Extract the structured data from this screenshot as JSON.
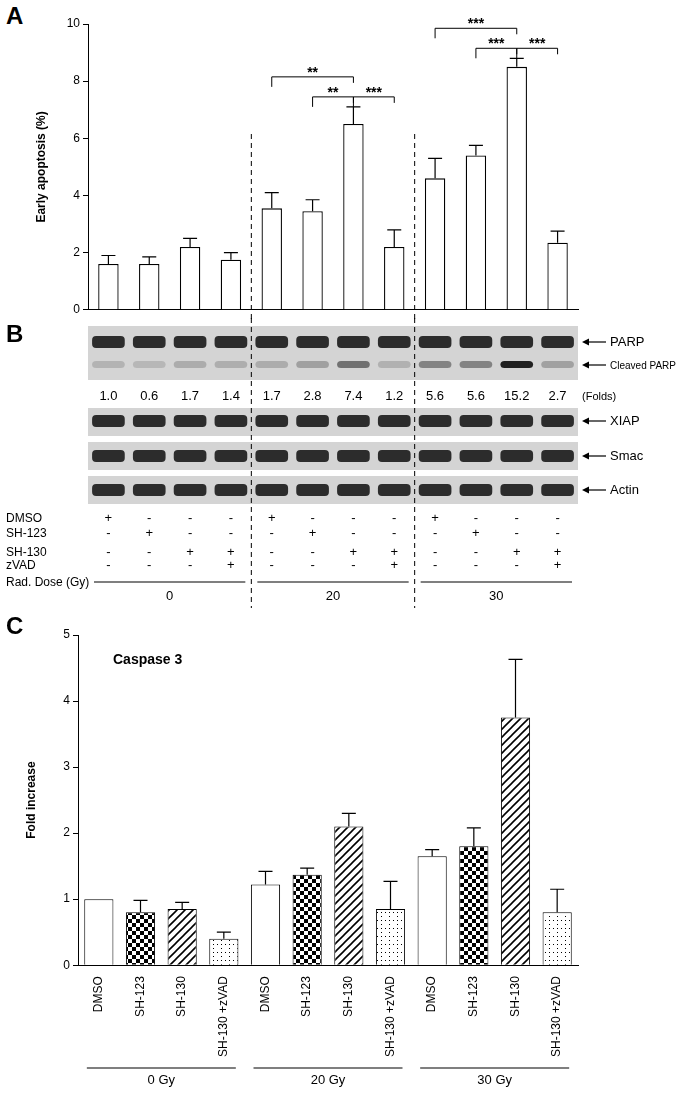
{
  "chart_data": [
    {
      "panel": "A",
      "type": "bar",
      "y_label": "Early apoptosis (%)",
      "categories": [
        null,
        null,
        null,
        null,
        null,
        null,
        null,
        null,
        null,
        null,
        null,
        null
      ],
      "values": [
        1.6,
        1.6,
        2.2,
        1.75,
        3.55,
        3.45,
        6.5,
        2.2,
        4.6,
        5.4,
        8.5,
        2.35
      ],
      "errors": [
        0.3,
        0.25,
        0.3,
        0.25,
        0.55,
        0.4,
        0.6,
        0.6,
        0.7,
        0.35,
        0.3,
        0.4
      ],
      "color": "#ffffff",
      "ylim": [
        0,
        10
      ],
      "yticks": [
        0,
        2,
        4,
        6,
        8,
        10
      ],
      "grid": false,
      "tick_labels": "y",
      "annotations": [
        {
          "from": 4,
          "to": 6,
          "label": "**"
        },
        {
          "from": 5,
          "to": 6,
          "label": "**"
        },
        {
          "from": 6,
          "to": 7,
          "label": "***"
        },
        {
          "from": 8,
          "to": 10,
          "label": "***"
        },
        {
          "from": 9,
          "to": 10,
          "label": "***"
        },
        {
          "from": 10,
          "to": 11,
          "label": "***"
        }
      ]
    },
    {
      "panel": "C",
      "type": "bar",
      "title": "Caspase 3",
      "y_label": "Fold increase",
      "categories": [
        "DMSO",
        "SH-123",
        "SH-130",
        "SH-130 +zVAD",
        "DMSO",
        "SH-123",
        "SH-130",
        "SH-130 +zVAD",
        "DMSO",
        "SH-123",
        "SH-130",
        "SH-130 +zVAD"
      ],
      "groups": [
        "0 Gy",
        "20 Gy",
        "30 Gy"
      ],
      "values": [
        1.0,
        0.8,
        0.85,
        0.4,
        1.22,
        1.37,
        2.1,
        0.85,
        1.65,
        1.8,
        3.75,
        0.8
      ],
      "errors": [
        0,
        0.18,
        0.1,
        0.1,
        0.2,
        0.1,
        0.2,
        0.42,
        0.1,
        0.28,
        0.88,
        0.35
      ],
      "color": "#ffffff",
      "ylim": [
        0,
        5
      ],
      "yticks": [
        0,
        1,
        2,
        3,
        4,
        5
      ],
      "grid": false
    }
  ],
  "blot": {
    "panel": "B",
    "rows": [
      "PARP",
      "XIAP",
      "Smac",
      "Actin"
    ],
    "cleaved_label": "Cleaved PARP",
    "folds": [
      "1.0",
      "0.6",
      "1.7",
      "1.4",
      "1.7",
      "2.8",
      "7.4",
      "1.2",
      "5.6",
      "5.6",
      "15.2",
      "2.7"
    ],
    "folds_label": "(Folds)",
    "treatments": [
      {
        "name": "DMSO",
        "marks": [
          "+",
          "-",
          "-",
          "-",
          "+",
          "-",
          "-",
          "-",
          "+",
          "-",
          "-",
          "-"
        ]
      },
      {
        "name": "SH-123",
        "marks": [
          "-",
          "+",
          "-",
          "-",
          "-",
          "+",
          "-",
          "-",
          "-",
          "+",
          "-",
          "-"
        ]
      },
      {
        "name": "SH-130",
        "marks": [
          "-",
          "-",
          "+",
          "+",
          "-",
          "-",
          "+",
          "+",
          "-",
          "-",
          "+",
          "+"
        ]
      },
      {
        "name": "zVAD",
        "marks": [
          "-",
          "-",
          "-",
          "+",
          "-",
          "-",
          "-",
          "+",
          "-",
          "-",
          "-",
          "+"
        ]
      }
    ],
    "dose_label": "Rad. Dose (Gy)",
    "doses": [
      "0",
      "20",
      "30"
    ]
  }
}
